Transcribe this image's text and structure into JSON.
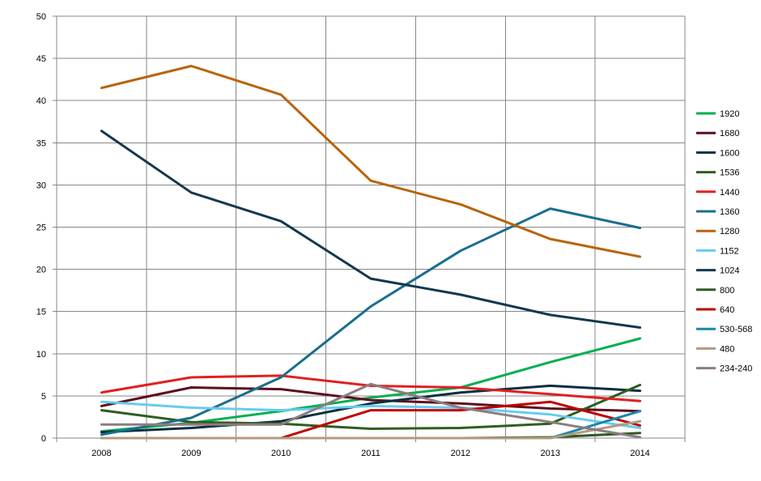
{
  "chart_data": {
    "type": "line",
    "title": "",
    "xlabel": "",
    "ylabel": "",
    "x": [
      "2008",
      "2009",
      "2010",
      "2011",
      "2012",
      "2013",
      "2014"
    ],
    "ylim": [
      0,
      50
    ],
    "yticks": [
      0,
      5,
      10,
      15,
      20,
      25,
      30,
      35,
      40,
      45,
      50
    ],
    "grid": true,
    "legend": "right",
    "series": [
      {
        "name": "1920",
        "color": "#00b050",
        "values": [
          0.8,
          1.8,
          3.2,
          4.8,
          6.0,
          9.0,
          11.8
        ]
      },
      {
        "name": "1680",
        "color": "#5c0f1e",
        "values": [
          3.8,
          6.0,
          5.8,
          4.5,
          4.1,
          3.5,
          3.2
        ]
      },
      {
        "name": "1600",
        "color": "#0a2e3d",
        "values": [
          0.7,
          1.2,
          2.0,
          4.1,
          5.4,
          6.2,
          5.6
        ]
      },
      {
        "name": "1536",
        "color": "#2e5e1e",
        "values": [
          3.3,
          1.9,
          1.7,
          1.1,
          1.2,
          1.7,
          6.3
        ]
      },
      {
        "name": "1440",
        "color": "#e02020",
        "values": [
          5.4,
          7.2,
          7.4,
          6.2,
          6.0,
          5.2,
          4.4
        ]
      },
      {
        "name": "1360",
        "color": "#1a6e8e",
        "values": [
          0.4,
          2.4,
          7.2,
          15.6,
          22.2,
          27.2,
          24.9
        ]
      },
      {
        "name": "1280",
        "color": "#b8640a",
        "values": [
          41.5,
          44.1,
          40.7,
          30.5,
          27.7,
          23.6,
          21.5
        ]
      },
      {
        "name": "1152",
        "color": "#66ccee",
        "values": [
          4.3,
          3.6,
          3.3,
          3.8,
          3.6,
          2.8,
          1.2
        ]
      },
      {
        "name": "1024",
        "color": "#13384f",
        "values": [
          36.4,
          29.1,
          25.7,
          18.9,
          17.0,
          14.6,
          13.1
        ]
      },
      {
        "name": "800",
        "color": "#2d5a1e",
        "values": [
          0.0,
          0.0,
          0.0,
          0.0,
          0.0,
          0.1,
          0.6
        ]
      },
      {
        "name": "640",
        "color": "#c00000",
        "values": [
          0.0,
          0.0,
          0.0,
          3.3,
          3.3,
          4.3,
          1.5
        ]
      },
      {
        "name": "530-568",
        "color": "#1788aa",
        "values": [
          0.0,
          0.0,
          0.0,
          0.0,
          0.0,
          0.0,
          3.2
        ]
      },
      {
        "name": "480",
        "color": "#b49a82",
        "values": [
          0.0,
          0.0,
          0.0,
          0.0,
          0.0,
          0.0,
          2.0
        ]
      },
      {
        "name": "234-240",
        "color": "#8e7b82",
        "values": [
          1.6,
          1.6,
          1.6,
          6.4,
          3.6,
          1.9,
          0.1
        ]
      }
    ]
  }
}
